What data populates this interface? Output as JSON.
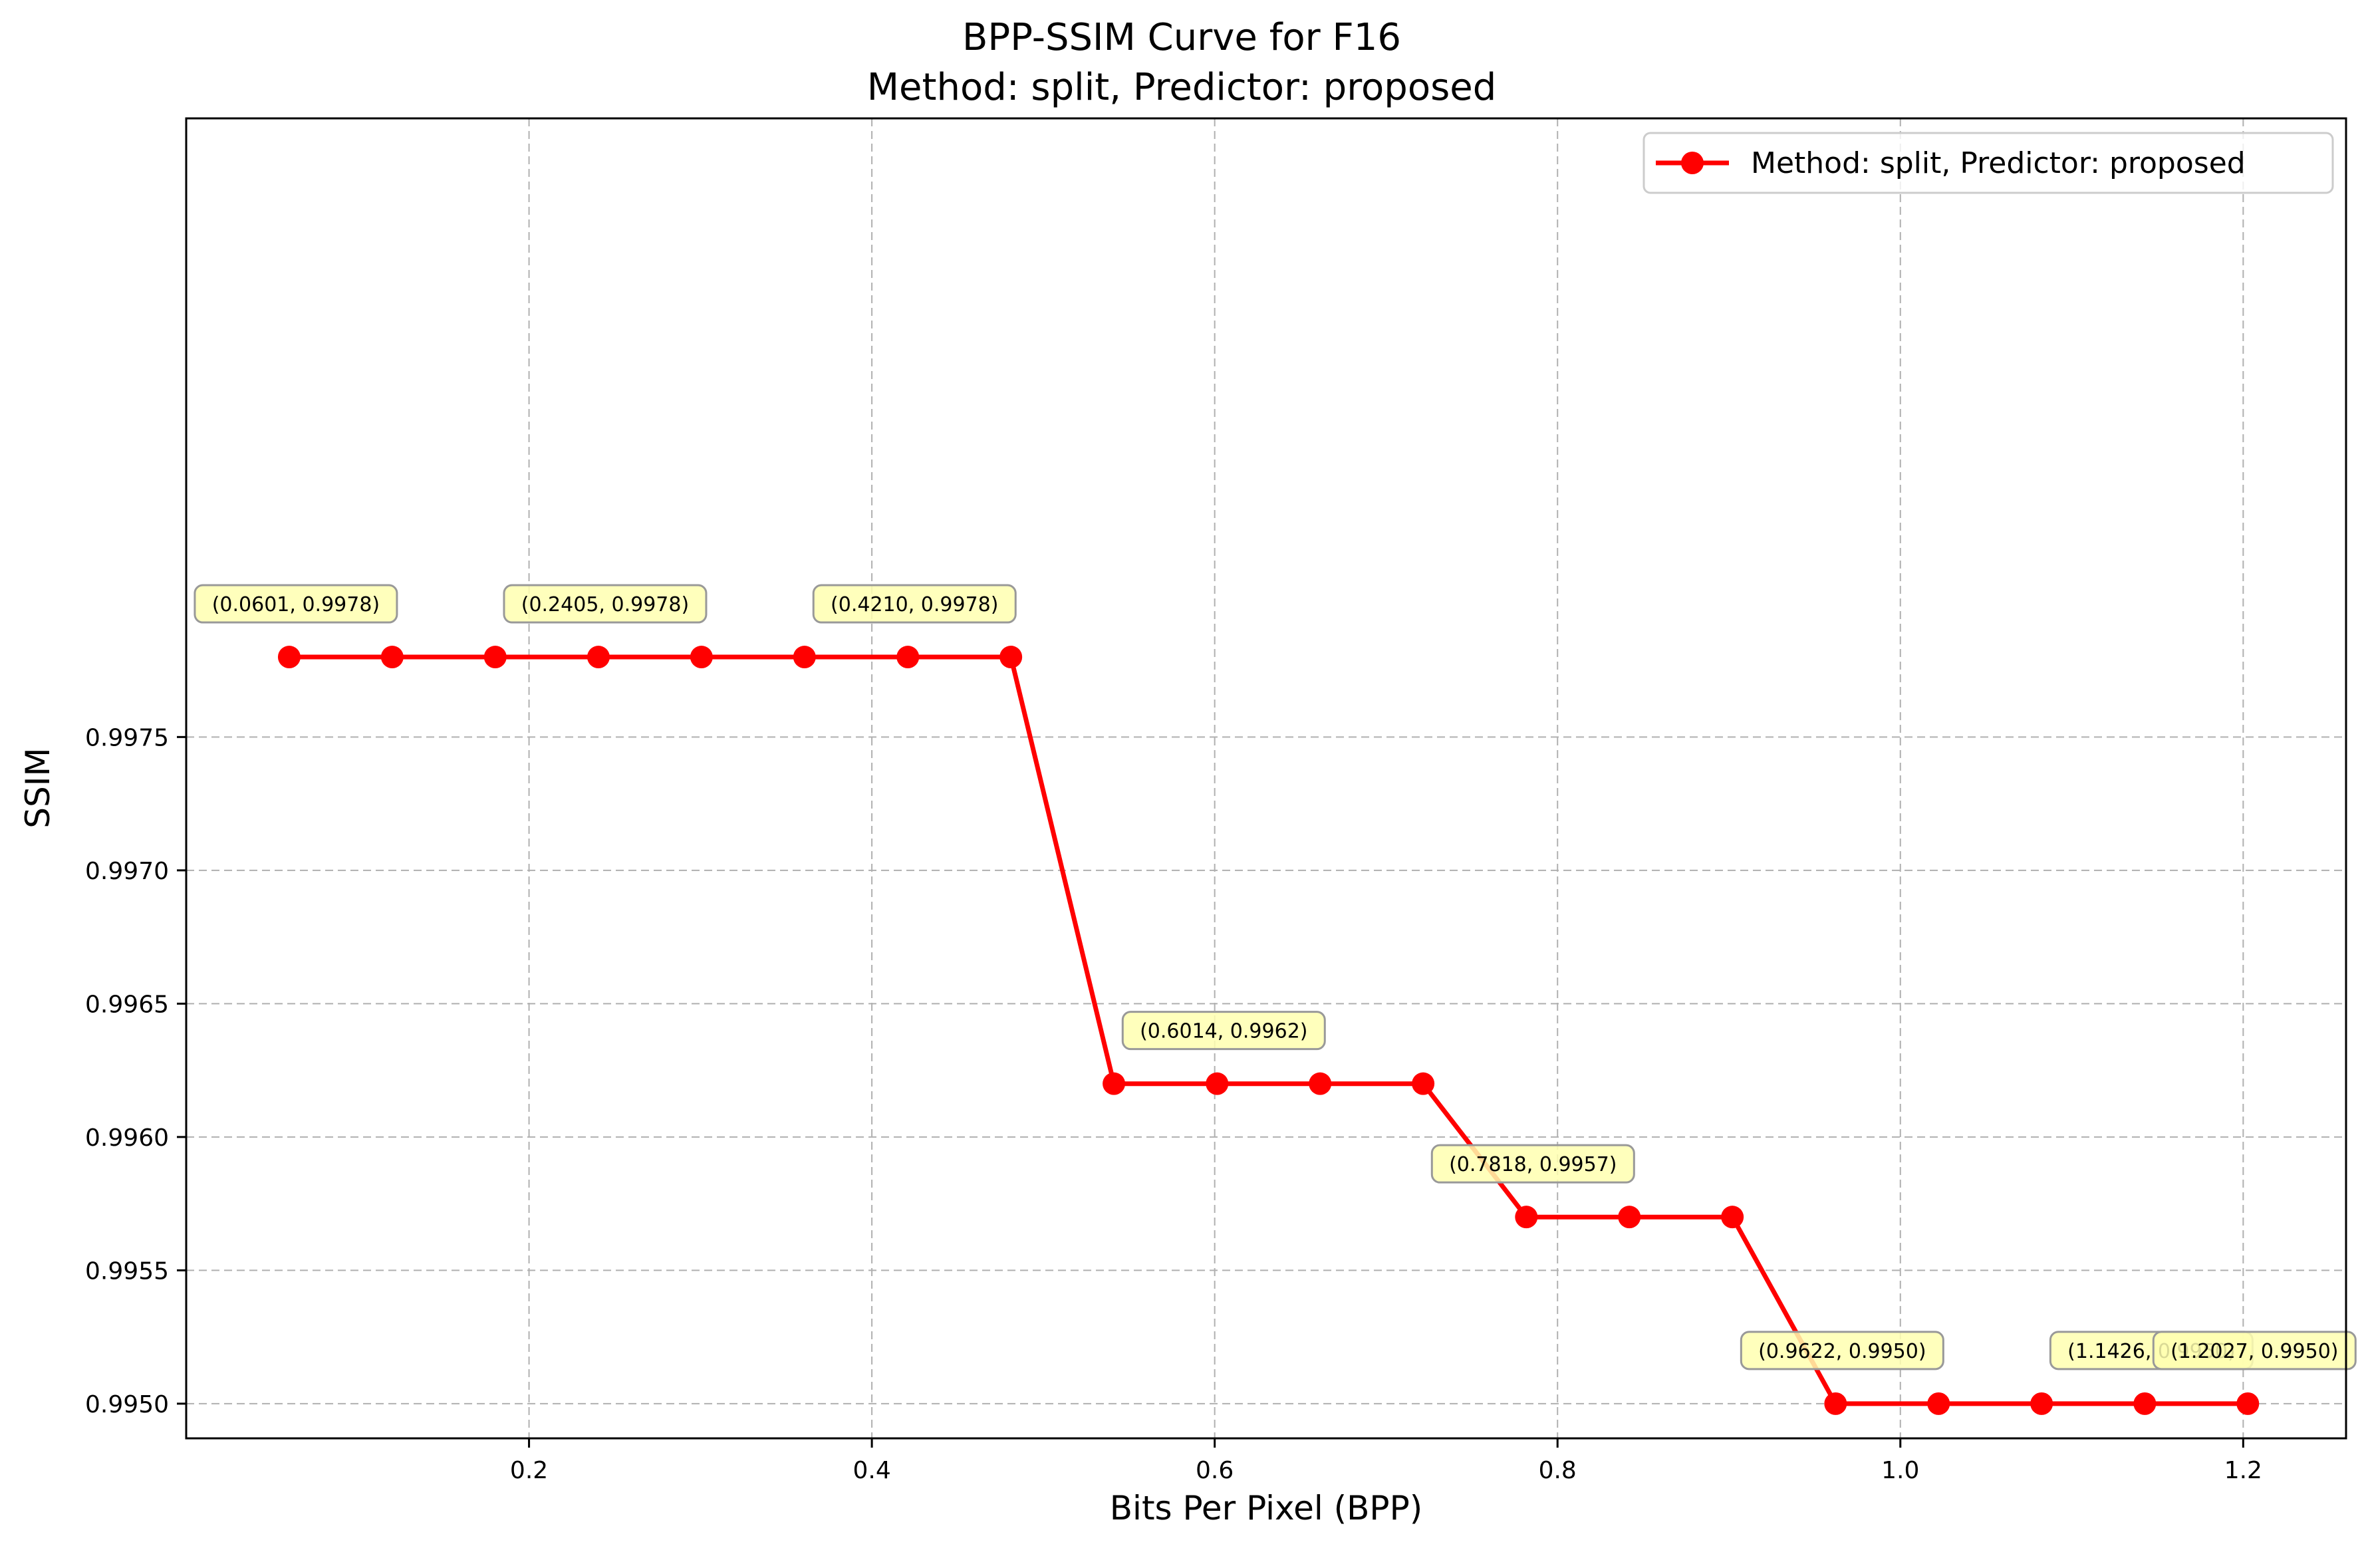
{
  "chart_data": {
    "type": "line",
    "title": "BPP-SSIM Curve for F16",
    "subtitle": "Method: split, Predictor: proposed",
    "xlabel": "Bits Per Pixel (BPP)",
    "ylabel": "SSIM",
    "xlim": [
      0.0,
      1.26
    ],
    "ylim": [
      0.99487,
      0.99982
    ],
    "xticks": [
      0.2,
      0.4,
      0.6,
      0.8,
      1.0,
      1.2
    ],
    "xtick_labels": [
      "0.2",
      "0.4",
      "0.6",
      "0.8",
      "1.0",
      "1.2"
    ],
    "yticks": [
      0.995,
      0.9955,
      0.996,
      0.9965,
      0.997,
      0.9975
    ],
    "ytick_labels": [
      "0.9950",
      "0.9955",
      "0.9960",
      "0.9965",
      "0.9970",
      "0.9975"
    ],
    "grid": true,
    "legend_position": "top-right",
    "series": [
      {
        "name": "Method: split, Predictor: proposed",
        "color": "#ff0000",
        "marker": "circle",
        "x": [
          0.0601,
          0.1202,
          0.1803,
          0.2405,
          0.3006,
          0.3607,
          0.421,
          0.4811,
          0.5412,
          0.6014,
          0.6615,
          0.7216,
          0.7818,
          0.8419,
          0.902,
          0.9622,
          1.0223,
          1.0824,
          1.1426,
          1.2027
        ],
        "y": [
          0.9978,
          0.9978,
          0.9978,
          0.9978,
          0.9978,
          0.9978,
          0.9978,
          0.9978,
          0.9962,
          0.9962,
          0.9962,
          0.9962,
          0.9957,
          0.9957,
          0.9957,
          0.995,
          0.995,
          0.995,
          0.995,
          0.995
        ]
      }
    ],
    "annotations": [
      {
        "text": "(0.0601, 0.9978)",
        "x": 0.0601,
        "y": 0.9978
      },
      {
        "text": "(0.2405, 0.9978)",
        "x": 0.2405,
        "y": 0.9978
      },
      {
        "text": "(0.4210, 0.9978)",
        "x": 0.421,
        "y": 0.9978
      },
      {
        "text": "(0.6014, 0.9962)",
        "x": 0.6014,
        "y": 0.9962
      },
      {
        "text": "(0.7818, 0.9957)",
        "x": 0.7818,
        "y": 0.9957
      },
      {
        "text": "(0.9622, 0.9950)",
        "x": 0.9622,
        "y": 0.995
      },
      {
        "text": "(1.1426, 0.9950)",
        "x": 1.1426,
        "y": 0.995
      },
      {
        "text": "(1.2027, 0.9950)",
        "x": 1.2027,
        "y": 0.995
      }
    ],
    "annotation_box_color": "#ffffb0"
  }
}
